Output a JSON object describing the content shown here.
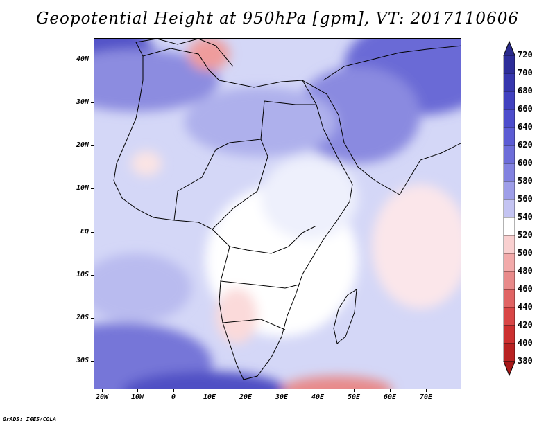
{
  "title": "Geopotential Height at 950hPa [gpm], VT: 2017110606",
  "footer": "GrADS: IGES/COLA",
  "map": {
    "variable": "Geopotential Height",
    "level": "950hPa",
    "units": "gpm",
    "valid_time": "2017110606",
    "lon_range": [
      -22,
      80
    ],
    "lat_range": [
      -37,
      45
    ],
    "lat_ticks": [
      {
        "value": 40,
        "label": "40N"
      },
      {
        "value": 30,
        "label": "30N"
      },
      {
        "value": 20,
        "label": "20N"
      },
      {
        "value": 10,
        "label": "10N"
      },
      {
        "value": 0,
        "label": "EQ"
      },
      {
        "value": -10,
        "label": "10S"
      },
      {
        "value": -20,
        "label": "20S"
      },
      {
        "value": -30,
        "label": "30S"
      }
    ],
    "lon_ticks": [
      {
        "value": -20,
        "label": "20W"
      },
      {
        "value": -10,
        "label": "10W"
      },
      {
        "value": 0,
        "label": "0"
      },
      {
        "value": 10,
        "label": "10E"
      },
      {
        "value": 20,
        "label": "20E"
      },
      {
        "value": 30,
        "label": "30E"
      },
      {
        "value": 40,
        "label": "40E"
      },
      {
        "value": 50,
        "label": "50E"
      },
      {
        "value": 60,
        "label": "60E"
      },
      {
        "value": 70,
        "label": "70E"
      }
    ]
  },
  "colorbar": {
    "levels": [
      "720",
      "700",
      "680",
      "660",
      "640",
      "620",
      "600",
      "580",
      "560",
      "540",
      "520",
      "500",
      "480",
      "460",
      "440",
      "420",
      "400",
      "380"
    ],
    "colors": [
      "#2d2d99",
      "#3636ad",
      "#4141bf",
      "#4d4dcc",
      "#5c5cd4",
      "#6d6dd9",
      "#8282e0",
      "#9e9ee8",
      "#c4c4f2",
      "#ffffff",
      "#f9d0d0",
      "#f2aaaa",
      "#e88a8a",
      "#e06464",
      "#d84646",
      "#cc3030",
      "#b82222"
    ],
    "top_arrow_color": "#2a2a8c",
    "bottom_arrow_color": "#a81818"
  }
}
